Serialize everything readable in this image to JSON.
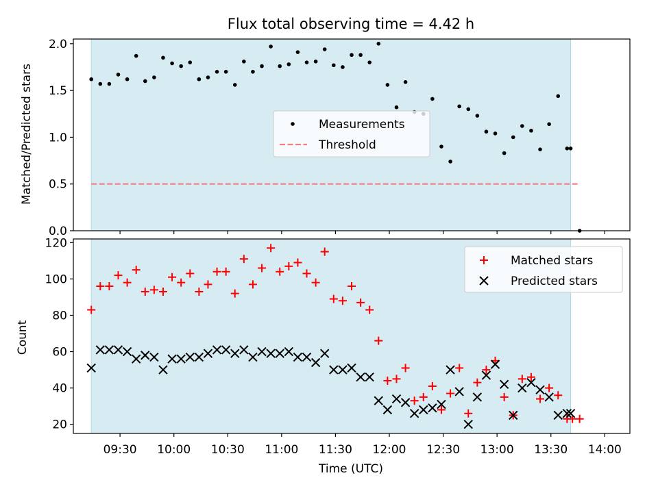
{
  "chart_data": [
    {
      "type": "scatter",
      "title": "Flux total observing time = 4.42 h",
      "ylabel": "Matched/Predicted stars",
      "xlabel": "",
      "xlim": [
        9.0666,
        14.2333
      ],
      "ylim": [
        0,
        2.05
      ],
      "yticks": [
        0,
        0.5,
        1.0,
        1.5,
        2.0
      ],
      "ytick_labels": [
        "0.0",
        "0.5",
        "1.0",
        "1.5",
        "2.0"
      ],
      "shaded_time_span": [
        9.2333,
        13.6833
      ],
      "threshold": 0.5,
      "threshold_span": [
        9.2333,
        13.7667
      ],
      "legend": [
        "Measurements",
        "Threshold"
      ],
      "legend_position": "center",
      "series": [
        {
          "name": "Measurements",
          "x": [
            9.2333,
            9.3167,
            9.4,
            9.4833,
            9.5667,
            9.65,
            9.7333,
            9.8167,
            9.9,
            9.9833,
            10.0667,
            10.15,
            10.2333,
            10.3167,
            10.4,
            10.4833,
            10.5667,
            10.65,
            10.7333,
            10.8167,
            10.9,
            10.9833,
            11.0667,
            11.15,
            11.2333,
            11.3167,
            11.4,
            11.4833,
            11.5667,
            11.65,
            11.7333,
            11.8167,
            11.9,
            11.9833,
            12.0667,
            12.15,
            12.2333,
            12.3167,
            12.4,
            12.4833,
            12.5667,
            12.65,
            12.7333,
            12.8167,
            12.9,
            12.9833,
            13.0667,
            13.15,
            13.2333,
            13.3167,
            13.4,
            13.4833,
            13.5667,
            13.65,
            13.6833,
            13.7667
          ],
          "y": [
            1.62,
            1.57,
            1.57,
            1.67,
            1.62,
            1.87,
            1.6,
            1.64,
            1.85,
            1.79,
            1.76,
            1.8,
            1.62,
            1.64,
            1.7,
            1.7,
            1.56,
            1.81,
            1.7,
            1.76,
            1.97,
            1.76,
            1.78,
            1.91,
            1.8,
            1.81,
            1.94,
            1.77,
            1.75,
            1.88,
            1.88,
            1.8,
            2.0,
            1.56,
            1.32,
            1.59,
            1.27,
            1.25,
            1.41,
            0.9,
            0.74,
            1.33,
            1.3,
            1.23,
            1.06,
            1.04,
            0.83,
            1.0,
            1.12,
            1.07,
            0.87,
            1.14,
            1.44,
            0.88,
            0.88,
            0.0
          ]
        }
      ]
    },
    {
      "type": "scatter",
      "title": "",
      "ylabel": "Count",
      "xlabel": "Time (UTC)",
      "xlim": [
        9.0666,
        14.2333
      ],
      "ylim": [
        15,
        122
      ],
      "yticks": [
        20,
        40,
        60,
        80,
        100,
        120
      ],
      "ytick_labels": [
        "20",
        "40",
        "60",
        "80",
        "100",
        "120"
      ],
      "xticks": [
        9.5,
        10.0,
        10.5,
        11.0,
        11.5,
        12.0,
        12.5,
        13.0,
        13.5,
        14.0
      ],
      "xtick_labels": [
        "09:30",
        "10:00",
        "10:30",
        "11:00",
        "11:30",
        "12:00",
        "12:30",
        "13:00",
        "13:30",
        "14:00"
      ],
      "shaded_time_span": [
        9.2333,
        13.6833
      ],
      "legend": [
        "Matched stars",
        "Predicted stars"
      ],
      "legend_position": "top-right",
      "series": [
        {
          "name": "Matched stars",
          "x": [
            9.2333,
            9.3167,
            9.4,
            9.4833,
            9.5667,
            9.65,
            9.7333,
            9.8167,
            9.9,
            9.9833,
            10.0667,
            10.15,
            10.2333,
            10.3167,
            10.4,
            10.4833,
            10.5667,
            10.65,
            10.7333,
            10.8167,
            10.9,
            10.9833,
            11.0667,
            11.15,
            11.2333,
            11.3167,
            11.4,
            11.4833,
            11.5667,
            11.65,
            11.7333,
            11.8167,
            11.9,
            11.9833,
            12.0667,
            12.15,
            12.2333,
            12.3167,
            12.4,
            12.4833,
            12.5667,
            12.65,
            12.7333,
            12.8167,
            12.9,
            12.9833,
            13.0667,
            13.15,
            13.2333,
            13.3167,
            13.4,
            13.4833,
            13.5667,
            13.65,
            13.7,
            13.7667
          ],
          "y": [
            83,
            96,
            96,
            102,
            98,
            105,
            93,
            94,
            93,
            101,
            98,
            103,
            93,
            97,
            104,
            104,
            92,
            111,
            97,
            106,
            117,
            104,
            107,
            109,
            103,
            98,
            115,
            89,
            88,
            96,
            87,
            83,
            66,
            44,
            45,
            51,
            33,
            35,
            41,
            28,
            37,
            51,
            26,
            43,
            50,
            55,
            35,
            25,
            45,
            46,
            34,
            40,
            36,
            23,
            23,
            23
          ]
        },
        {
          "name": "Predicted stars",
          "x": [
            9.2333,
            9.3167,
            9.4,
            9.4833,
            9.5667,
            9.65,
            9.7333,
            9.8167,
            9.9,
            9.9833,
            10.0667,
            10.15,
            10.2333,
            10.3167,
            10.4,
            10.4833,
            10.5667,
            10.65,
            10.7333,
            10.8167,
            10.9,
            10.9833,
            11.0667,
            11.15,
            11.2333,
            11.3167,
            11.4,
            11.4833,
            11.5667,
            11.65,
            11.7333,
            11.8167,
            11.9,
            11.9833,
            12.0667,
            12.15,
            12.2333,
            12.3167,
            12.4,
            12.4833,
            12.5667,
            12.65,
            12.7333,
            12.8167,
            12.9,
            12.9833,
            13.0667,
            13.15,
            13.2333,
            13.3167,
            13.4,
            13.4833,
            13.5667,
            13.65,
            13.6833
          ],
          "y": [
            51,
            61,
            61,
            61,
            60,
            56,
            58,
            57,
            50,
            56,
            56,
            57,
            57,
            59,
            61,
            61,
            59,
            61,
            57,
            60,
            59,
            59,
            60,
            57,
            57,
            54,
            59,
            50,
            50,
            51,
            46,
            46,
            33,
            28,
            34,
            32,
            26,
            28,
            29,
            31,
            50,
            38,
            20,
            35,
            47,
            53,
            42,
            25,
            40,
            43,
            39,
            35,
            25,
            26,
            26
          ]
        }
      ]
    }
  ],
  "colors": {
    "shade": "#add8e6",
    "measurements": "#000000",
    "threshold": "#f08080",
    "matched": "#ff0000",
    "predicted": "#000000"
  }
}
